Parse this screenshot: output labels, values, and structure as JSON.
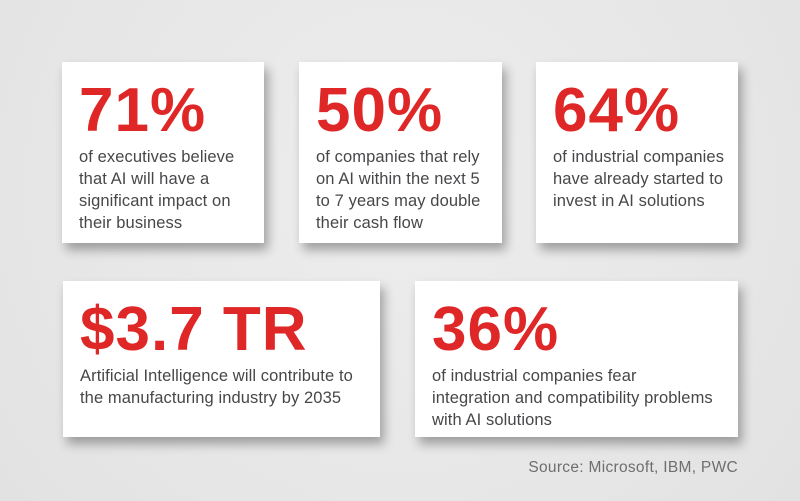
{
  "palette": {
    "accent_red": "#de2726",
    "body_text": "#47474a",
    "card_background": "#ffffff",
    "page_background": "#e8e8e8",
    "source_text": "#6e6e6e"
  },
  "cards": [
    {
      "stat": "71%",
      "desc": "of executives believe\nthat AI will have a\nsignificant impact on\ntheir business"
    },
    {
      "stat": "50%",
      "desc": "of companies that rely\non AI within the next 5\nto 7 years may double\ntheir cash flow"
    },
    {
      "stat": "64%",
      "desc": "of industrial companies\nhave already started to\ninvest in AI solutions"
    },
    {
      "stat": "$3.7 TR",
      "desc": "Artificial Intelligence will contribute to\nthe manufacturing industry by 2035"
    },
    {
      "stat": "36%",
      "desc": "of industrial companies fear\nintegration and compatibility problems\nwith AI solutions"
    }
  ],
  "source": {
    "label": "Source: Microsoft, IBM, PWC"
  },
  "chart_data": {
    "type": "table",
    "title": "AI adoption and impact statistics",
    "items": [
      {
        "value": "71%",
        "label": "of executives believe that AI will have a significant impact on their business"
      },
      {
        "value": "50%",
        "label": "of companies that rely on AI within the next 5 to 7 years may double their cash flow"
      },
      {
        "value": "64%",
        "label": "of industrial companies have already started to invest in AI solutions"
      },
      {
        "value": "$3.7 TR",
        "label": "Artificial Intelligence will contribute to the manufacturing industry by 2035"
      },
      {
        "value": "36%",
        "label": "of industrial companies fear integration and compatibility problems with AI solutions"
      }
    ],
    "source": "Source: Microsoft, IBM, PWC",
    "layout": "2 rows of stat callout cards: 3 cards top row, 2 cards bottom row, source caption bottom-right"
  }
}
